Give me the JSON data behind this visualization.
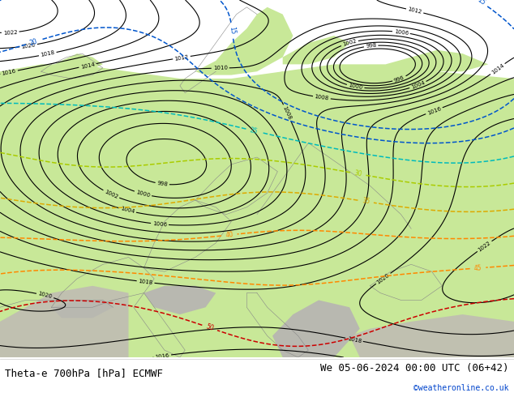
{
  "title_left": "Theta-e 700hPa [hPa] ECMWF",
  "title_right": "We 05-06-2024 00:00 UTC (06+42)",
  "credit": "©weatheronline.co.uk",
  "fig_width": 6.34,
  "fig_height": 4.9,
  "dpi": 100,
  "black_color": "#000000",
  "orange_color": "#ff8800",
  "yellow_color": "#bbaa00",
  "lime_color": "#88bb00",
  "cyan_color": "#00bbbb",
  "blue_color": "#0055cc",
  "red_color": "#cc0000",
  "green_color": "#44aa00",
  "border_color": "#888888",
  "land_color": "#c8e898",
  "sea_color": "#c8c8c8",
  "mountain_color": "#b0b0b0",
  "footer_line_color": "#cccccc",
  "title_fontsize": 9,
  "credit_fontsize": 7,
  "label_fontsize_black": 5.5,
  "label_fontsize_color": 6.0
}
